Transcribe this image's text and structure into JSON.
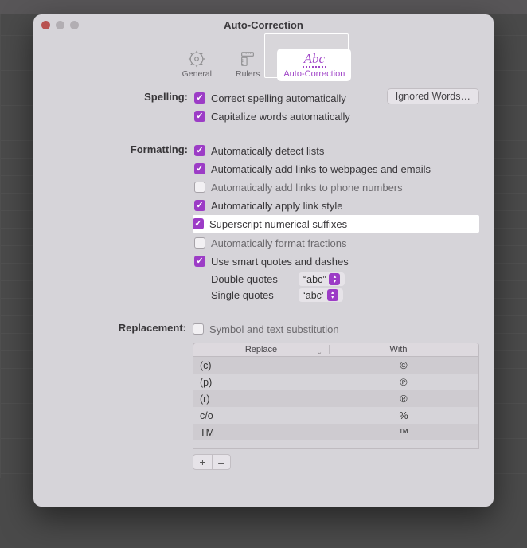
{
  "colors": {
    "accent": "#9c3cc6",
    "window_bg": "#d6d4d9",
    "backdrop": "#4a4a4a"
  },
  "window": {
    "title": "Auto-Correction"
  },
  "tabs": {
    "general": "General",
    "rulers": "Rulers",
    "autocorrect": "Auto-Correction",
    "abc_glyph": "Abc"
  },
  "sections": {
    "spelling": {
      "label": "Spelling:",
      "correct_auto": "Correct spelling automatically",
      "capitalize_auto": "Capitalize words automatically",
      "ignored_btn": "Ignored Words…"
    },
    "formatting": {
      "label": "Formatting:",
      "detect_lists": "Automatically detect lists",
      "links_web": "Automatically add links to webpages and emails",
      "links_phone": "Automatically add links to phone numbers",
      "link_style": "Automatically apply link style",
      "superscript": "Superscript numerical suffixes",
      "fractions": "Automatically format fractions",
      "smart_quotes": "Use smart quotes and dashes",
      "double_q_label": "Double quotes",
      "double_q_value": "“abc”",
      "single_q_label": "Single quotes",
      "single_q_value": "‘abc’"
    },
    "replacement": {
      "label": "Replacement:",
      "symbol_sub": "Symbol and text substitution",
      "col_replace": "Replace",
      "col_with": "With",
      "rows": [
        {
          "replace": "(c)",
          "with": "©"
        },
        {
          "replace": "(p)",
          "with": "℗"
        },
        {
          "replace": "(r)",
          "with": "®"
        },
        {
          "replace": "c/o",
          "with": "%"
        },
        {
          "replace": "TM",
          "with": "™"
        }
      ],
      "add": "+",
      "remove": "–"
    }
  }
}
